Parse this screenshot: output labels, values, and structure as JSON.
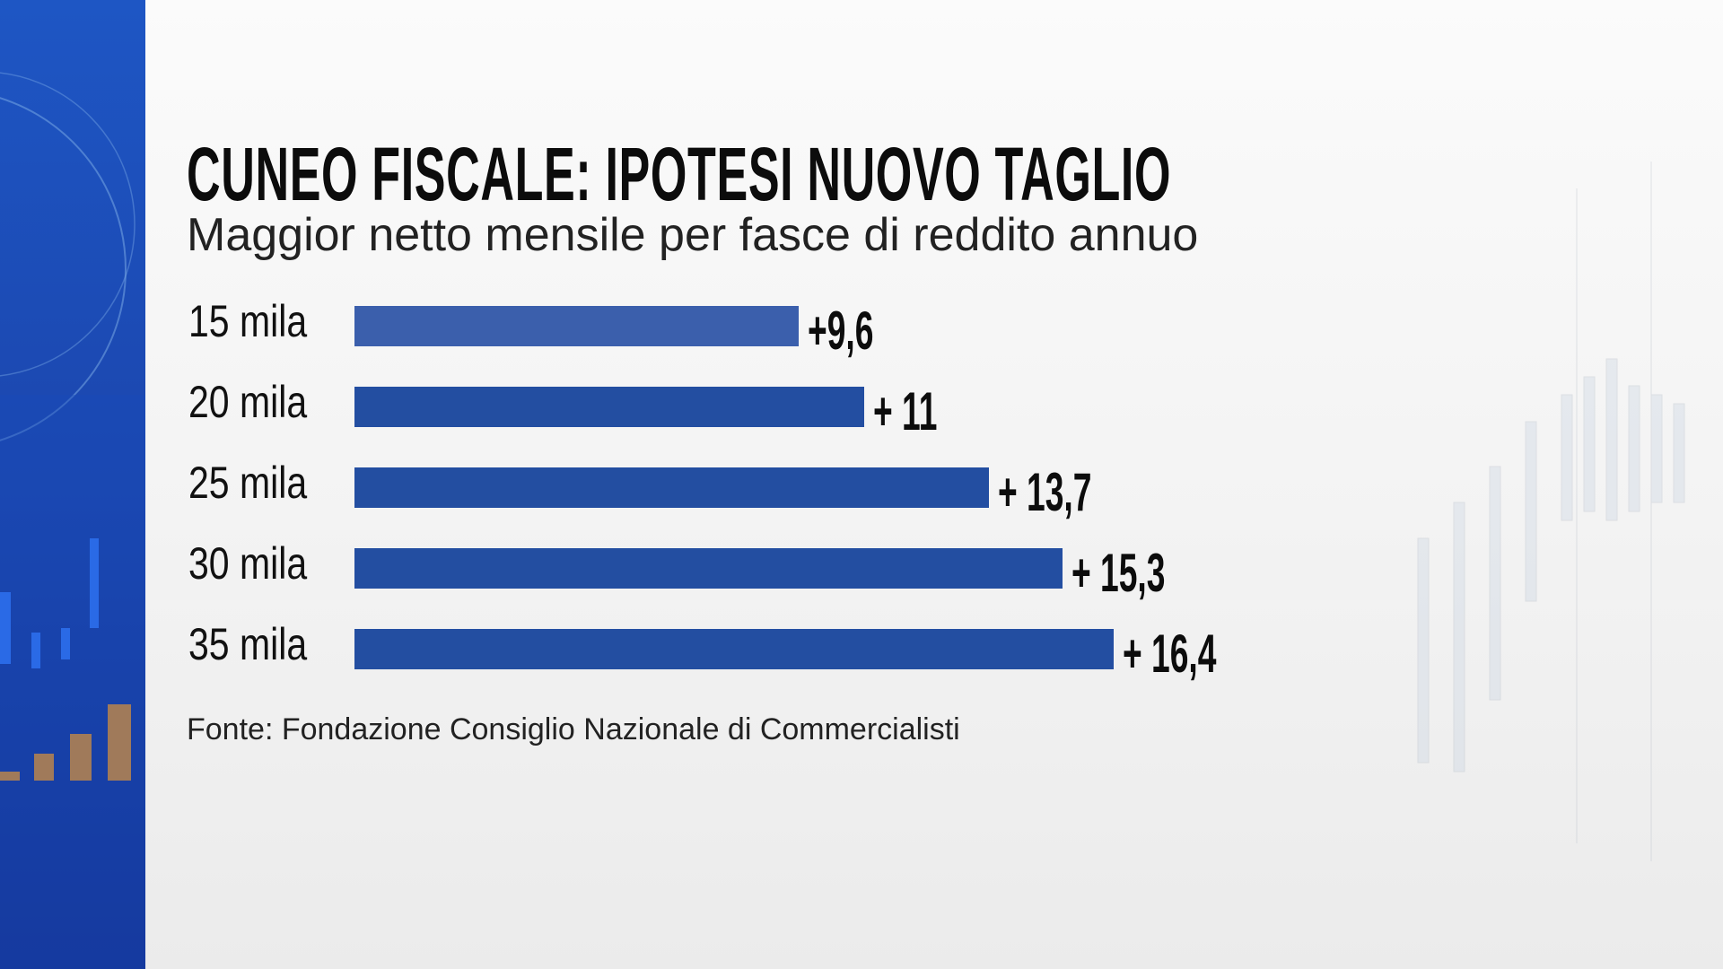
{
  "chart_data": {
    "type": "bar",
    "orientation": "horizontal",
    "title": "CUNEO FISCALE: IPOTESI  NUOVO TAGLIO",
    "subtitle": "Maggior netto mensile per fasce di reddito annuo",
    "categories": [
      "15 mila",
      "20 mila",
      "25 mila",
      "30 mila",
      "35 mila"
    ],
    "values": [
      9.6,
      11,
      13.7,
      15.3,
      16.4
    ],
    "data_labels": [
      "+9,6",
      "+ 11",
      "+ 13,7",
      "+ 15,3",
      "+ 16,4"
    ],
    "xlabel": "",
    "ylabel": "",
    "grid": false,
    "bar_color": "#234ea1",
    "source": "Fonte:  Fondazione Consiglio Nazionale di Commercialisti"
  }
}
